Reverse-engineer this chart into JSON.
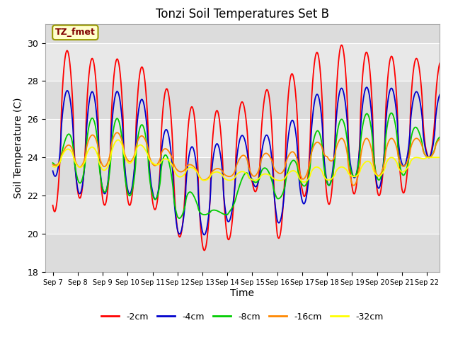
{
  "title": "Tonzi Soil Temperatures Set B",
  "xlabel": "Time",
  "ylabel": "Soil Temperature (C)",
  "ylim": [
    18,
    31
  ],
  "annotation": "TZ_fmet",
  "legend_labels": [
    "-2cm",
    "-4cm",
    "-8cm",
    "-16cm",
    "-32cm"
  ],
  "legend_colors": [
    "#ff0000",
    "#0000cc",
    "#00cc00",
    "#ff8800",
    "#ffff00"
  ],
  "bg_color": "#dcdcdc",
  "band_color_light": "#e8e8e8",
  "band_color_dark": "#d0d0d0",
  "series": {
    "cm2": {
      "color": "#ff0000",
      "peaks": [
        30.0,
        29.3,
        29.1,
        29.2,
        28.4,
        27.0,
        26.4,
        26.5,
        27.2,
        27.8,
        28.8,
        30.0,
        29.8,
        29.3,
        29.3,
        29.1
      ],
      "troughs": [
        21.1,
        21.9,
        21.5,
        21.5,
        21.4,
        19.9,
        19.1,
        19.5,
        22.5,
        19.6,
        22.0,
        21.5,
        22.1,
        22.0,
        22.0,
        24.0
      ]
    },
    "cm4": {
      "color": "#0000cc",
      "peaks": [
        27.5,
        27.5,
        27.4,
        27.5,
        26.7,
        24.5,
        24.6,
        24.8,
        25.4,
        25.0,
        26.6,
        27.8,
        27.5,
        27.8,
        27.5,
        27.4
      ],
      "troughs": [
        23.1,
        22.1,
        22.1,
        22.1,
        22.0,
        20.0,
        19.9,
        20.5,
        22.7,
        20.5,
        21.5,
        22.5,
        23.0,
        22.3,
        23.5,
        24.0
      ]
    },
    "cm8": {
      "color": "#00cc00",
      "peaks": [
        24.0,
        26.0,
        26.1,
        26.0,
        25.5,
        23.0,
        21.5,
        21.0,
        24.2,
        22.8,
        24.5,
        26.0,
        26.0,
        26.5,
        26.2,
        25.1
      ],
      "troughs": [
        23.7,
        22.7,
        22.2,
        22.0,
        21.9,
        20.8,
        21.0,
        21.0,
        22.8,
        21.8,
        22.5,
        22.5,
        23.0,
        22.8,
        23.0,
        24.0
      ]
    },
    "cm16": {
      "color": "#ff8800",
      "peaks": [
        24.1,
        25.0,
        25.3,
        25.3,
        25.0,
        24.0,
        23.3,
        23.5,
        24.5,
        24.0,
        24.5,
        25.0,
        25.0,
        25.0,
        25.0,
        25.0
      ],
      "troughs": [
        23.6,
        23.5,
        23.5,
        23.8,
        23.6,
        23.3,
        22.8,
        23.0,
        23.0,
        23.2,
        22.8,
        24.0,
        22.5,
        23.0,
        23.5,
        24.0
      ]
    },
    "cm32": {
      "color": "#ffff00",
      "peaks": [
        24.2,
        24.6,
        24.5,
        25.2,
        24.2,
        23.7,
        23.3,
        23.2,
        23.3,
        23.0,
        23.5,
        23.5,
        23.5,
        24.0,
        24.0,
        24.0
      ],
      "troughs": [
        23.5,
        23.5,
        23.3,
        23.7,
        23.7,
        23.0,
        22.8,
        22.8,
        22.8,
        22.8,
        22.7,
        22.8,
        23.0,
        23.0,
        23.2,
        24.0
      ]
    }
  },
  "tick_labels": [
    "Sep 7",
    "Sep 8",
    "Sep 9",
    "Sep 10",
    "Sep 11",
    "Sep 12",
    "Sep 13",
    "Sep 14",
    "Sep 15",
    "Sep 16",
    "Sep 17",
    "Sep 18",
    "Sep 19",
    "Sep 20",
    "Sep 21",
    "Sep 22"
  ]
}
